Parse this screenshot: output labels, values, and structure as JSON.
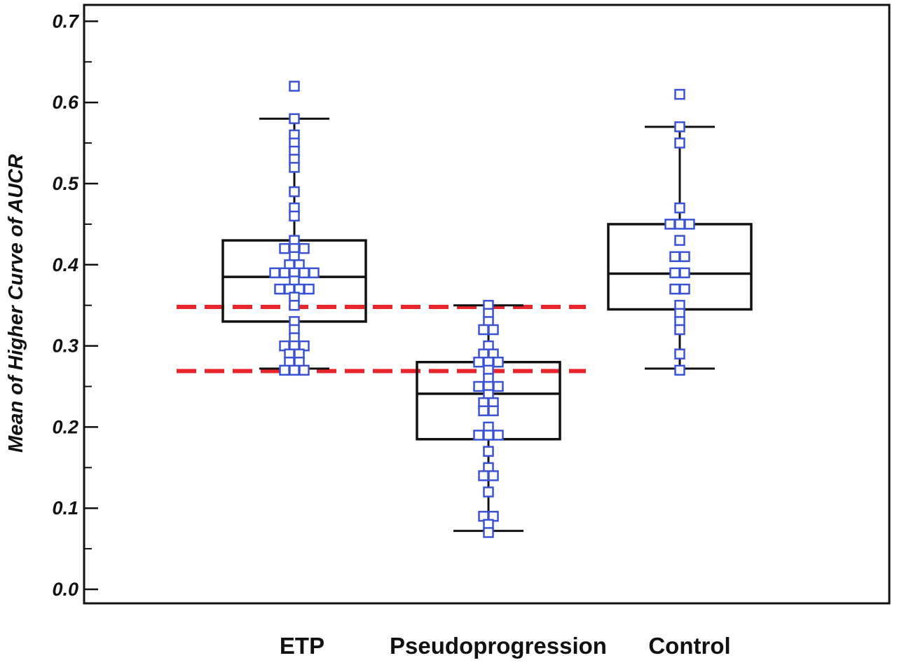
{
  "chart_data": {
    "type": "box",
    "ylabel": "Mean of Higher Curve of AUCR",
    "ylim": [
      0,
      0.72
    ],
    "yticks": [
      {
        "value": 0.0,
        "label": "0.0"
      },
      {
        "value": 0.1,
        "label": "0.1"
      },
      {
        "value": 0.2,
        "label": "0.2"
      },
      {
        "value": 0.3,
        "label": "0.3"
      },
      {
        "value": 0.4,
        "label": "0.4"
      },
      {
        "value": 0.5,
        "label": "0.5"
      },
      {
        "value": 0.6,
        "label": "0.6"
      },
      {
        "value": 0.7,
        "label": "0.7"
      }
    ],
    "minor_step": 0.05,
    "grid": false,
    "categories": [
      "ETP",
      "Pseudoprogression",
      "Control"
    ],
    "boxes": [
      {
        "category": "ETP",
        "whisker_low": 0.272,
        "q1": 0.33,
        "median": 0.385,
        "q3": 0.43,
        "whisker_high": 0.58,
        "points": [
          0.62,
          0.58,
          0.56,
          0.55,
          0.54,
          0.53,
          0.52,
          0.49,
          0.47,
          0.46,
          0.43,
          0.42,
          0.42,
          0.42,
          0.41,
          0.4,
          0.4,
          0.39,
          0.39,
          0.39,
          0.39,
          0.39,
          0.38,
          0.37,
          0.37,
          0.37,
          0.37,
          0.36,
          0.35,
          0.33,
          0.32,
          0.31,
          0.3,
          0.3,
          0.3,
          0.29,
          0.29,
          0.28,
          0.28,
          0.27,
          0.27,
          0.27
        ]
      },
      {
        "category": "Pseudoprogression",
        "whisker_low": 0.072,
        "q1": 0.185,
        "median": 0.241,
        "q3": 0.28,
        "whisker_high": 0.35,
        "points": [
          0.35,
          0.34,
          0.33,
          0.32,
          0.32,
          0.3,
          0.29,
          0.29,
          0.28,
          0.28,
          0.28,
          0.27,
          0.26,
          0.25,
          0.25,
          0.25,
          0.24,
          0.23,
          0.23,
          0.22,
          0.22,
          0.2,
          0.19,
          0.19,
          0.19,
          0.17,
          0.15,
          0.14,
          0.14,
          0.12,
          0.09,
          0.09,
          0.08,
          0.07
        ]
      },
      {
        "category": "Control",
        "whisker_low": 0.272,
        "q1": 0.345,
        "median": 0.389,
        "q3": 0.45,
        "whisker_high": 0.57,
        "points": [
          0.61,
          0.57,
          0.55,
          0.47,
          0.45,
          0.45,
          0.45,
          0.43,
          0.41,
          0.41,
          0.39,
          0.39,
          0.37,
          0.37,
          0.35,
          0.34,
          0.33,
          0.32,
          0.29,
          0.27
        ]
      }
    ],
    "reference_lines": [
      {
        "value": 0.348,
        "style": "dashed",
        "color": "#e8262b"
      },
      {
        "value": 0.269,
        "style": "dashed",
        "color": "#e8262b"
      }
    ],
    "colors": {
      "box": "#111111",
      "point": "#3a52d6",
      "reference": "#e8262b"
    }
  }
}
